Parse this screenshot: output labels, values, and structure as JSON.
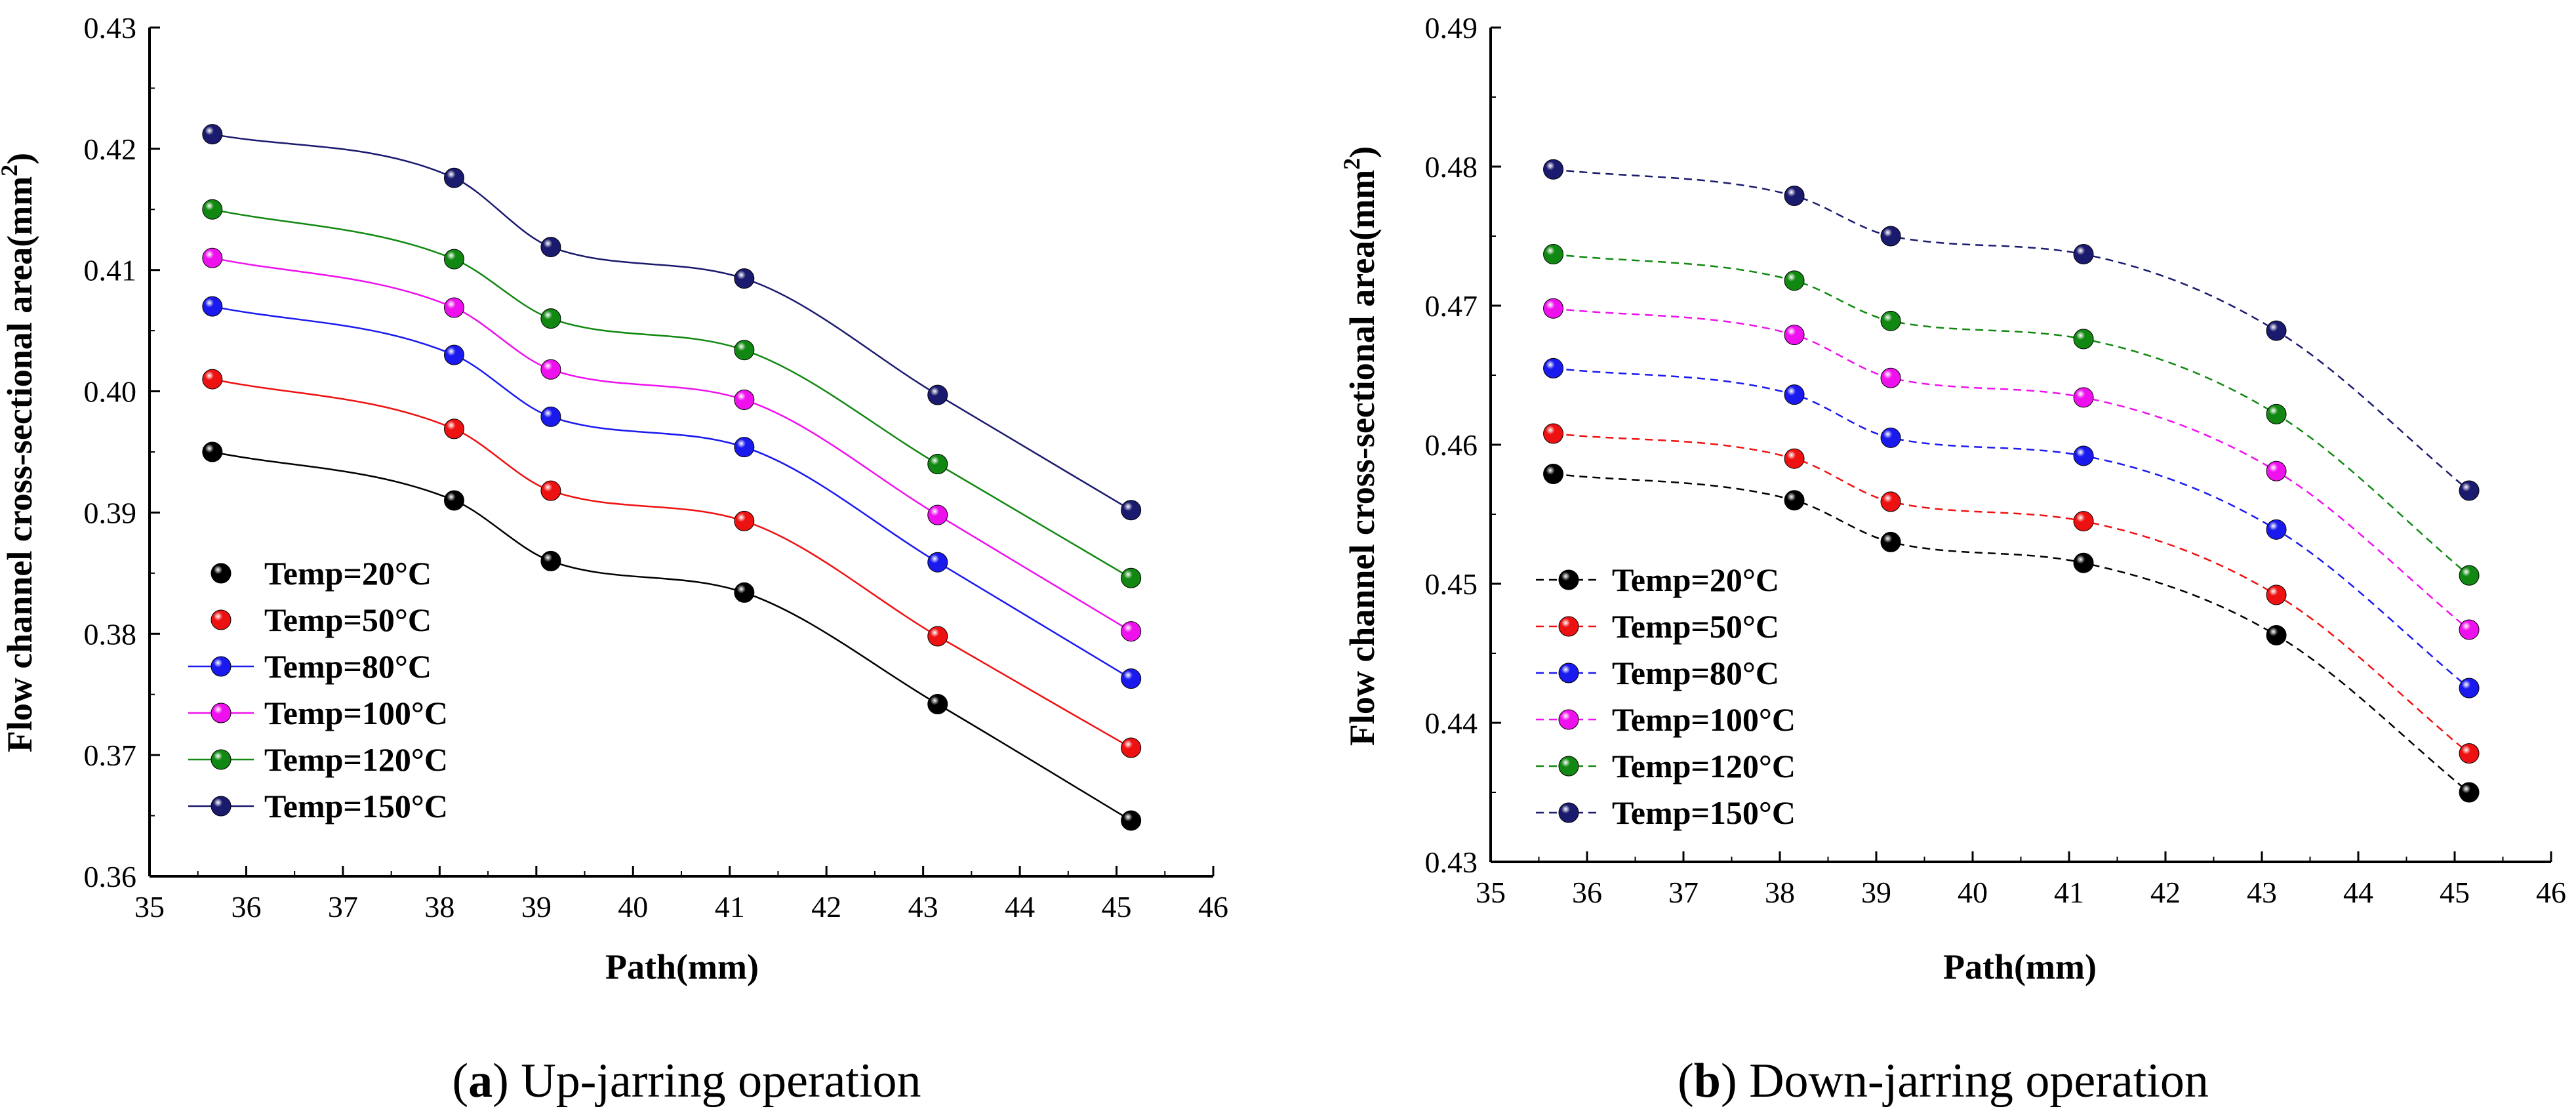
{
  "chart_data": [
    {
      "type": "line",
      "panel": "a",
      "caption_letter": "a",
      "caption_text": " Up-jarring operation",
      "xlabel": "Path(mm)",
      "ylabel": "Flow channel cross-sectional area(mm",
      "ylabel_sup": "2",
      "ylabel_close": ")",
      "xlim": [
        35,
        46
      ],
      "ylim": [
        0.36,
        0.43
      ],
      "xticks": [
        35,
        36,
        37,
        38,
        39,
        40,
        41,
        42,
        43,
        44,
        45,
        46
      ],
      "yticks": [
        "0.36",
        "0.37",
        "0.38",
        "0.39",
        "0.40",
        "0.41",
        "0.42",
        "0.43"
      ],
      "line_style": "solid",
      "legend_position": "bottom-left",
      "x": [
        35.65,
        38.15,
        39.15,
        41.15,
        43.15,
        45.15
      ],
      "series": [
        {
          "name": "Temp=20°C",
          "color": "#000000",
          "values": [
            0.395,
            0.391,
            0.386,
            0.3834,
            0.3742,
            0.3646
          ]
        },
        {
          "name": "Temp=50°C",
          "color": "#ee1111",
          "values": [
            0.401,
            0.3969,
            0.3918,
            0.3893,
            0.3798,
            0.3706
          ]
        },
        {
          "name": "Temp=80°C",
          "color": "#1a1aee",
          "values": [
            0.407,
            0.403,
            0.3979,
            0.3954,
            0.3859,
            0.3763
          ]
        },
        {
          "name": "Temp=100°C",
          "color": "#ee11ee",
          "values": [
            0.411,
            0.4069,
            0.4018,
            0.3993,
            0.3898,
            0.3802
          ]
        },
        {
          "name": "Temp=120°C",
          "color": "#118811",
          "values": [
            0.415,
            0.4109,
            0.406,
            0.4034,
            0.394,
            0.3846
          ]
        },
        {
          "name": "Temp=150°C",
          "color": "#1a1a6e",
          "values": [
            0.4212,
            0.4176,
            0.4119,
            0.4093,
            0.3997,
            0.3902
          ]
        }
      ]
    },
    {
      "type": "line",
      "panel": "b",
      "caption_letter": "b",
      "caption_text": " Down-jarring operation",
      "xlabel": "Path(mm)",
      "ylabel": "Flow channel cross-sectional area(mm",
      "ylabel_sup": "2",
      "ylabel_close": ")",
      "xlim": [
        35,
        46
      ],
      "ylim": [
        0.43,
        0.49
      ],
      "xticks": [
        35,
        36,
        37,
        38,
        39,
        40,
        41,
        42,
        43,
        44,
        45,
        46
      ],
      "yticks": [
        "0.43",
        "0.44",
        "0.45",
        "0.46",
        "0.47",
        "0.48",
        "0.49"
      ],
      "line_style": "dashed",
      "legend_position": "bottom-left",
      "x": [
        35.65,
        38.15,
        39.15,
        41.15,
        43.15,
        45.15
      ],
      "series": [
        {
          "name": "Temp=20°C",
          "color": "#000000",
          "values": [
            0.4579,
            0.456,
            0.453,
            0.4515,
            0.4463,
            0.435
          ]
        },
        {
          "name": "Temp=50°C",
          "color": "#ee1111",
          "values": [
            0.4608,
            0.459,
            0.4559,
            0.4545,
            0.4492,
            0.4378
          ]
        },
        {
          "name": "Temp=80°C",
          "color": "#1a1aee",
          "values": [
            0.4655,
            0.4636,
            0.4605,
            0.4592,
            0.4539,
            0.4425
          ]
        },
        {
          "name": "Temp=100°C",
          "color": "#ee11ee",
          "values": [
            0.4698,
            0.4679,
            0.4648,
            0.4634,
            0.4581,
            0.4467
          ]
        },
        {
          "name": "Temp=120°C",
          "color": "#118811",
          "values": [
            0.4737,
            0.4718,
            0.4689,
            0.4676,
            0.4622,
            0.4506
          ]
        },
        {
          "name": "Temp=150°C",
          "color": "#1a1a6e",
          "values": [
            0.4798,
            0.4779,
            0.475,
            0.4737,
            0.4682,
            0.4567
          ]
        }
      ]
    }
  ]
}
